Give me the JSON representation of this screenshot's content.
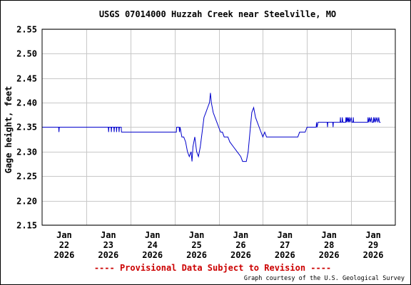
{
  "chart_data": {
    "type": "line",
    "title": "USGS 07014000 Huzzah Creek near Steelville, MO",
    "ylabel": "Gage height, feet",
    "xlabel": "",
    "ylim": [
      2.15,
      2.55
    ],
    "yticks": [
      "2.15",
      "2.20",
      "2.25",
      "2.30",
      "2.35",
      "2.40",
      "2.45",
      "2.50",
      "2.55"
    ],
    "xlim": [
      "2026-01-21 12:00",
      "2026-01-29 12:00"
    ],
    "xticks": [
      {
        "date": "2026-01-22",
        "label": [
          "Jan",
          "22",
          "2026"
        ]
      },
      {
        "date": "2026-01-23",
        "label": [
          "Jan",
          "23",
          "2026"
        ]
      },
      {
        "date": "2026-01-24",
        "label": [
          "Jan",
          "24",
          "2026"
        ]
      },
      {
        "date": "2026-01-25",
        "label": [
          "Jan",
          "25",
          "2026"
        ]
      },
      {
        "date": "2026-01-26",
        "label": [
          "Jan",
          "26",
          "2026"
        ]
      },
      {
        "date": "2026-01-27",
        "label": [
          "Jan",
          "27",
          "2026"
        ]
      },
      {
        "date": "2026-01-28",
        "label": [
          "Jan",
          "28",
          "2026"
        ]
      },
      {
        "date": "2026-01-29",
        "label": [
          "Jan",
          "29",
          "2026"
        ]
      }
    ],
    "grid": true,
    "line_color": "#0000cc",
    "series": [
      {
        "points": [
          [
            "2026-01-21 12:00",
            2.35
          ],
          [
            "2026-01-21 21:00",
            2.35
          ],
          [
            "2026-01-21 21:10",
            2.34
          ],
          [
            "2026-01-21 21:20",
            2.35
          ],
          [
            "2026-01-23 00:00",
            2.35
          ],
          [
            "2026-01-23 00:10",
            2.34
          ],
          [
            "2026-01-23 00:20",
            2.35
          ],
          [
            "2026-01-23 01:30",
            2.35
          ],
          [
            "2026-01-23 01:40",
            2.34
          ],
          [
            "2026-01-23 01:50",
            2.35
          ],
          [
            "2026-01-23 03:00",
            2.35
          ],
          [
            "2026-01-23 03:10",
            2.34
          ],
          [
            "2026-01-23 03:20",
            2.35
          ],
          [
            "2026-01-23 04:20",
            2.35
          ],
          [
            "2026-01-23 04:30",
            2.34
          ],
          [
            "2026-01-23 04:40",
            2.35
          ],
          [
            "2026-01-23 05:40",
            2.35
          ],
          [
            "2026-01-23 05:50",
            2.34
          ],
          [
            "2026-01-23 06:00",
            2.35
          ],
          [
            "2026-01-23 07:00",
            2.35
          ],
          [
            "2026-01-23 07:10",
            2.34
          ],
          [
            "2026-01-24 13:00",
            2.34
          ],
          [
            "2026-01-24 13:10",
            2.35
          ],
          [
            "2026-01-24 14:30",
            2.35
          ],
          [
            "2026-01-24 14:40",
            2.34
          ],
          [
            "2026-01-24 15:00",
            2.35
          ],
          [
            "2026-01-24 15:30",
            2.34
          ],
          [
            "2026-01-24 16:00",
            2.33
          ],
          [
            "2026-01-24 17:00",
            2.33
          ],
          [
            "2026-01-24 18:00",
            2.32
          ],
          [
            "2026-01-24 19:00",
            2.3
          ],
          [
            "2026-01-24 20:00",
            2.29
          ],
          [
            "2026-01-24 21:00",
            2.3
          ],
          [
            "2026-01-24 21:30",
            2.28
          ],
          [
            "2026-01-24 22:00",
            2.31
          ],
          [
            "2026-01-24 23:00",
            2.33
          ],
          [
            "2026-01-25 00:00",
            2.3
          ],
          [
            "2026-01-25 01:00",
            2.29
          ],
          [
            "2026-01-25 02:00",
            2.31
          ],
          [
            "2026-01-25 03:00",
            2.34
          ],
          [
            "2026-01-25 04:00",
            2.37
          ],
          [
            "2026-01-25 05:00",
            2.38
          ],
          [
            "2026-01-25 06:00",
            2.39
          ],
          [
            "2026-01-25 07:00",
            2.4
          ],
          [
            "2026-01-25 07:30",
            2.42
          ],
          [
            "2026-01-25 08:00",
            2.4
          ],
          [
            "2026-01-25 09:00",
            2.38
          ],
          [
            "2026-01-25 10:00",
            2.37
          ],
          [
            "2026-01-25 11:00",
            2.36
          ],
          [
            "2026-01-25 12:00",
            2.35
          ],
          [
            "2026-01-25 13:00",
            2.34
          ],
          [
            "2026-01-25 14:00",
            2.34
          ],
          [
            "2026-01-25 15:00",
            2.33
          ],
          [
            "2026-01-25 17:00",
            2.33
          ],
          [
            "2026-01-25 18:00",
            2.32
          ],
          [
            "2026-01-25 20:00",
            2.31
          ],
          [
            "2026-01-25 22:00",
            2.3
          ],
          [
            "2026-01-26 00:00",
            2.29
          ],
          [
            "2026-01-26 01:00",
            2.28
          ],
          [
            "2026-01-26 03:00",
            2.28
          ],
          [
            "2026-01-26 04:00",
            2.3
          ],
          [
            "2026-01-26 05:00",
            2.34
          ],
          [
            "2026-01-26 06:00",
            2.38
          ],
          [
            "2026-01-26 07:00",
            2.39
          ],
          [
            "2026-01-26 08:00",
            2.37
          ],
          [
            "2026-01-26 09:00",
            2.36
          ],
          [
            "2026-01-26 10:00",
            2.35
          ],
          [
            "2026-01-26 11:00",
            2.34
          ],
          [
            "2026-01-26 12:00",
            2.33
          ],
          [
            "2026-01-26 13:00",
            2.34
          ],
          [
            "2026-01-26 14:00",
            2.33
          ],
          [
            "2026-01-27 07:00",
            2.33
          ],
          [
            "2026-01-27 08:00",
            2.34
          ],
          [
            "2026-01-27 11:00",
            2.34
          ],
          [
            "2026-01-27 12:00",
            2.35
          ],
          [
            "2026-01-27 17:00",
            2.35
          ],
          [
            "2026-01-27 17:10",
            2.36
          ],
          [
            "2026-01-27 17:30",
            2.35
          ],
          [
            "2026-01-27 18:00",
            2.36
          ],
          [
            "2026-01-27 23:00",
            2.36
          ],
          [
            "2026-01-27 23:10",
            2.35
          ],
          [
            "2026-01-27 23:20",
            2.36
          ],
          [
            "2026-01-28 02:00",
            2.36
          ],
          [
            "2026-01-28 02:10",
            2.35
          ],
          [
            "2026-01-28 02:20",
            2.36
          ],
          [
            "2026-01-28 06:00",
            2.36
          ],
          [
            "2026-01-28 06:10",
            2.37
          ],
          [
            "2026-01-28 06:20",
            2.36
          ],
          [
            "2026-01-28 07:00",
            2.36
          ],
          [
            "2026-01-28 07:10",
            2.37
          ],
          [
            "2026-01-28 07:30",
            2.36
          ],
          [
            "2026-01-28 09:00",
            2.36
          ],
          [
            "2026-01-28 09:10",
            2.37
          ],
          [
            "2026-01-28 09:20",
            2.36
          ],
          [
            "2026-01-28 09:40",
            2.37
          ],
          [
            "2026-01-28 10:00",
            2.36
          ],
          [
            "2026-01-28 10:20",
            2.37
          ],
          [
            "2026-01-28 10:40",
            2.36
          ],
          [
            "2026-01-28 11:00",
            2.37
          ],
          [
            "2026-01-28 11:20",
            2.36
          ],
          [
            "2026-01-28 12:00",
            2.37
          ],
          [
            "2026-01-28 12:20",
            2.36
          ],
          [
            "2026-01-28 13:00",
            2.36
          ],
          [
            "2026-01-28 13:10",
            2.37
          ],
          [
            "2026-01-28 13:20",
            2.36
          ],
          [
            "2026-01-28 21:00",
            2.36
          ],
          [
            "2026-01-28 21:10",
            2.37
          ],
          [
            "2026-01-28 21:30",
            2.36
          ],
          [
            "2026-01-28 22:00",
            2.37
          ],
          [
            "2026-01-28 22:20",
            2.36
          ],
          [
            "2026-01-28 23:00",
            2.37
          ],
          [
            "2026-01-28 23:20",
            2.36
          ],
          [
            "2026-01-29 00:00",
            2.36
          ],
          [
            "2026-01-29 00:10",
            2.37
          ],
          [
            "2026-01-29 00:30",
            2.36
          ],
          [
            "2026-01-29 01:00",
            2.37
          ],
          [
            "2026-01-29 01:20",
            2.36
          ],
          [
            "2026-01-29 02:00",
            2.37
          ],
          [
            "2026-01-29 02:30",
            2.36
          ],
          [
            "2026-01-29 03:00",
            2.37
          ],
          [
            "2026-01-29 03:20",
            2.36
          ],
          [
            "2026-01-29 04:00",
            2.36
          ]
        ]
      }
    ]
  },
  "footer": {
    "provisional": "---- Provisional Data Subject to Revision ----",
    "credit": "Graph courtesy of the U.S. Geological Survey",
    "provisional_color": "#cc0000"
  }
}
